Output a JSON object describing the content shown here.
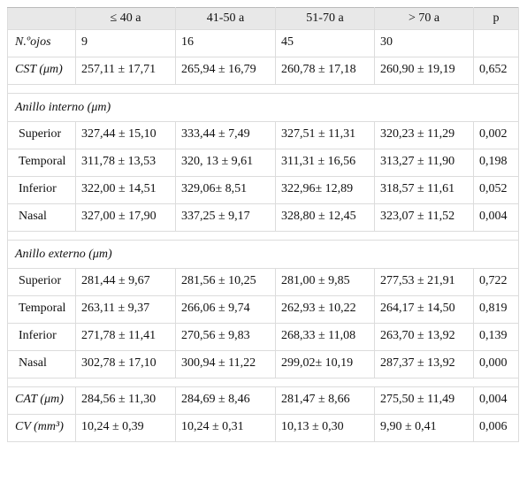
{
  "table": {
    "header": [
      "≤ 40 a",
      "41-50 a",
      "51-70 a",
      "> 70 a",
      "p"
    ],
    "groups": [
      {
        "rows": [
          [
            "N.ºojos",
            "9",
            "16",
            "45",
            "30"
          ],
          [
            "CST (μm)",
            "257,11 ± 17,71",
            "265,94 ± 16,79",
            "260,78 ± 17,18",
            "260,90 ± 19,19",
            "0,652"
          ]
        ]
      },
      {
        "title": "Anillo interno (μm)",
        "rows": [
          [
            "Superior",
            "327,44 ± 15,10",
            "333,44 ± 7,49",
            "327,51 ± 11,31",
            "320,23 ± 11,29",
            "0,002"
          ],
          [
            "Temporal",
            "311,78 ± 13,53",
            "320, 13 ± 9,61",
            "311,31 ± 16,56",
            "313,27 ± 11,90",
            "0,198"
          ],
          [
            "Inferior",
            "322,00 ± 14,51",
            "329,06± 8,51",
            "322,96± 12,89",
            "318,57 ± 11,61",
            "0,052"
          ],
          [
            "Nasal",
            "327,00 ± 17,90",
            "337,25 ± 9,17",
            "328,80 ± 12,45",
            "323,07 ± 11,52",
            "0,004"
          ]
        ]
      },
      {
        "title": "Anillo externo (μm)",
        "rows": [
          [
            "Superior",
            "281,44 ± 9,67",
            "281,56 ± 10,25",
            "281,00 ± 9,85",
            "277,53 ± 21,91",
            "0,722"
          ],
          [
            "Temporal",
            "263,11 ± 9,37",
            "266,06 ± 9,74",
            "262,93 ± 10,22",
            "264,17 ± 14,50",
            "0,819"
          ],
          [
            "Inferior",
            "271,78 ± 11,41",
            "270,56 ± 9,83",
            "268,33 ± 11,08",
            "263,70 ± 13,92",
            "0,139"
          ],
          [
            "Nasal",
            "302,78 ± 17,10",
            "300,94 ± 11,22",
            "299,02± 10,19",
            "287,37 ± 13,92",
            "0,000"
          ]
        ]
      },
      {
        "rows": [
          [
            "CAT (μm)",
            "284,56 ± 11,30",
            "284,69 ± 8,46",
            "281,47 ± 8,66",
            "275,50 ± 11,49",
            "0,004"
          ],
          [
            "CV (mm³)",
            "10,24 ± 0,39",
            "10,24 ± 0,31",
            "10,13 ± 0,30",
            "9,90 ± 0,41",
            "0,006"
          ]
        ]
      }
    ]
  }
}
